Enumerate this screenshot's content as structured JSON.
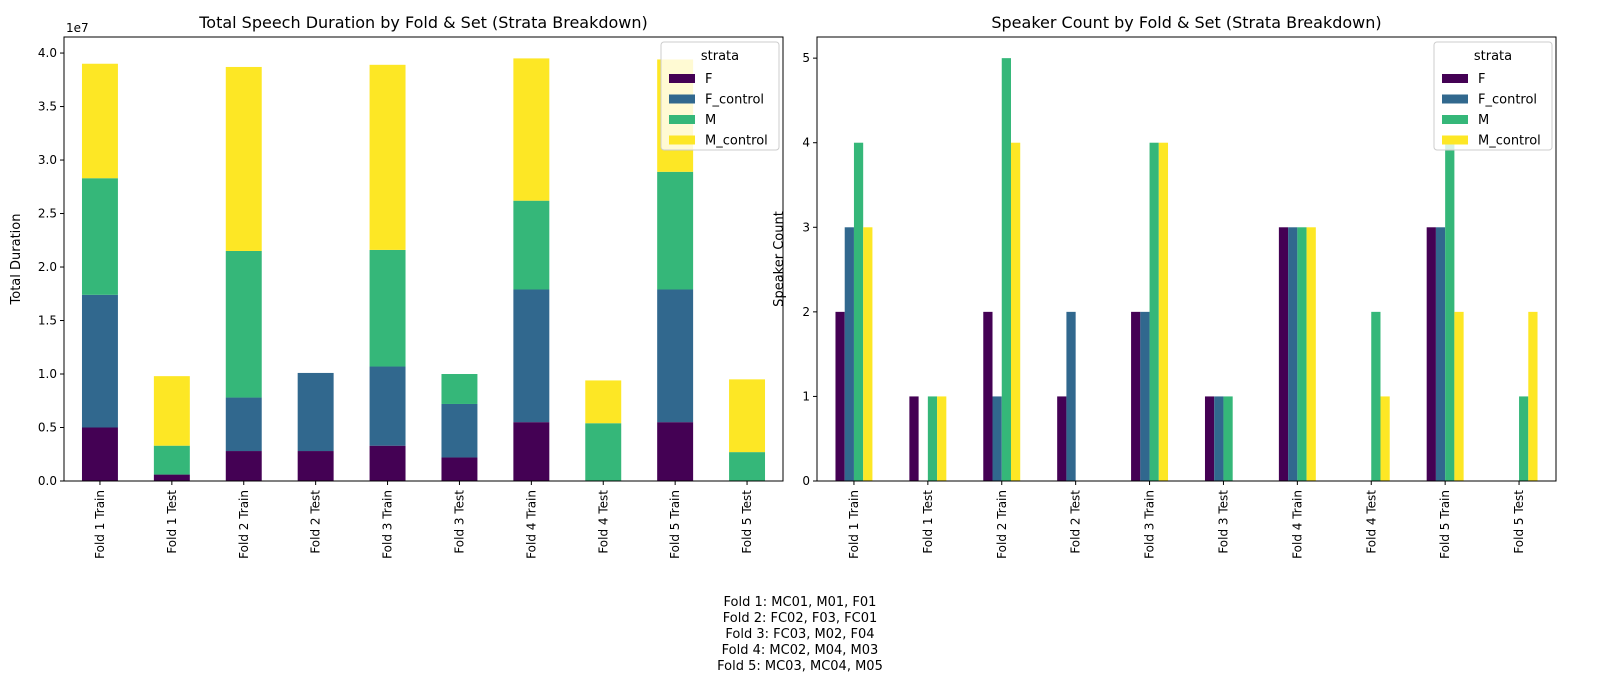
{
  "colors": {
    "F": "#440154",
    "F_control": "#31688e",
    "M": "#35b779",
    "M_control": "#fde725"
  },
  "chart_data": [
    {
      "type": "bar",
      "stacked": true,
      "title": "Total Speech Duration by Fold & Set (Strata Breakdown)",
      "xlabel": "",
      "ylabel": "Total Duration",
      "offset_label": "1e7",
      "ylim": [
        0,
        4.15
      ],
      "yticks": [
        0.0,
        0.5,
        1.0,
        1.5,
        2.0,
        2.5,
        3.0,
        3.5,
        4.0
      ],
      "ytick_labels": [
        "0.0",
        "0.5",
        "1.0",
        "1.5",
        "2.0",
        "2.5",
        "3.0",
        "3.5",
        "4.0"
      ],
      "categories": [
        "Fold 1 Train",
        "Fold 1 Test",
        "Fold 2 Train",
        "Fold 2 Test",
        "Fold 3 Train",
        "Fold 3 Test",
        "Fold 4 Train",
        "Fold 4 Test",
        "Fold 5 Train",
        "Fold 5 Test"
      ],
      "legend": {
        "title": "strata",
        "position": "upper right"
      },
      "series": [
        {
          "name": "F",
          "values": [
            0.5,
            0.06,
            0.28,
            0.28,
            0.33,
            0.22,
            0.55,
            0.0,
            0.55,
            0.0
          ]
        },
        {
          "name": "F_control",
          "values": [
            1.24,
            0.0,
            0.5,
            0.73,
            0.74,
            0.5,
            1.24,
            0.0,
            1.24,
            0.0
          ]
        },
        {
          "name": "M",
          "values": [
            1.09,
            0.27,
            1.37,
            0.0,
            1.09,
            0.28,
            0.83,
            0.54,
            1.1,
            0.27
          ]
        },
        {
          "name": "M_control",
          "values": [
            1.07,
            0.65,
            1.72,
            0.0,
            1.73,
            0.0,
            1.33,
            0.4,
            1.05,
            0.68
          ]
        }
      ]
    },
    {
      "type": "bar",
      "stacked": false,
      "title": "Speaker Count by Fold & Set (Strata Breakdown)",
      "xlabel": "",
      "ylabel": "Speaker Count",
      "ylim": [
        0,
        5.25
      ],
      "yticks": [
        0,
        1,
        2,
        3,
        4,
        5
      ],
      "ytick_labels": [
        "0",
        "1",
        "2",
        "3",
        "4",
        "5"
      ],
      "categories": [
        "Fold 1 Train",
        "Fold 1 Test",
        "Fold 2 Train",
        "Fold 2 Test",
        "Fold 3 Train",
        "Fold 3 Test",
        "Fold 4 Train",
        "Fold 4 Test",
        "Fold 5 Train",
        "Fold 5 Test"
      ],
      "legend": {
        "title": "strata",
        "position": "upper right"
      },
      "series": [
        {
          "name": "F",
          "values": [
            2,
            1,
            2,
            1,
            2,
            1,
            3,
            0,
            3,
            0
          ]
        },
        {
          "name": "F_control",
          "values": [
            3,
            0,
            1,
            2,
            2,
            1,
            3,
            0,
            3,
            0
          ]
        },
        {
          "name": "M",
          "values": [
            4,
            1,
            5,
            0,
            4,
            1,
            3,
            2,
            4,
            1
          ]
        },
        {
          "name": "M_control",
          "values": [
            3,
            1,
            4,
            0,
            4,
            0,
            3,
            1,
            2,
            2
          ]
        }
      ]
    }
  ],
  "footnote": [
    "Fold 1: MC01, M01, F01",
    "Fold 2: FC02, F03, FC01",
    "Fold 3: FC03, M02, F04",
    "Fold 4: MC02, M04, M03",
    "Fold 5: MC03, MC04, M05"
  ]
}
